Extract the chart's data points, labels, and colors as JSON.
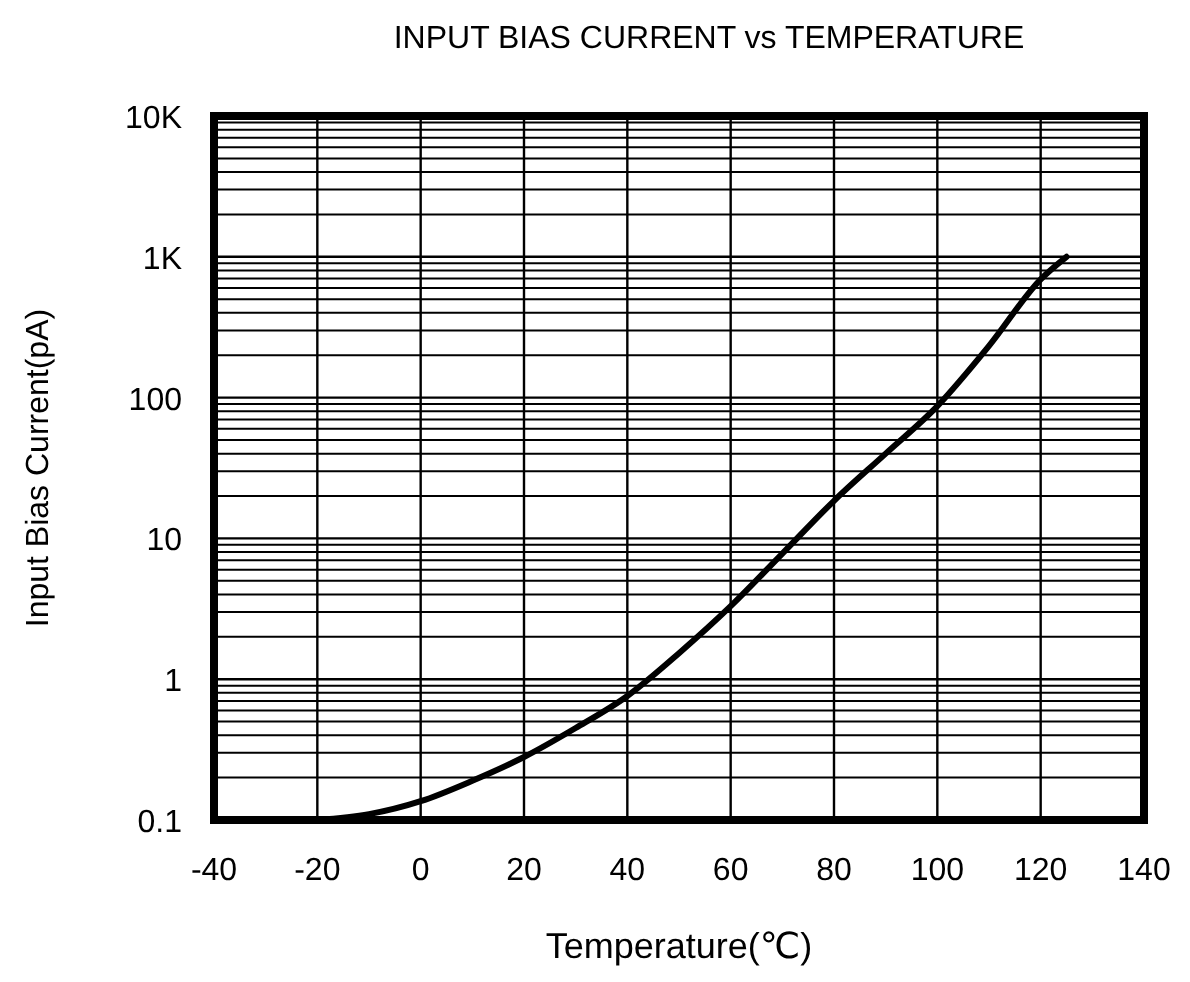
{
  "chart_data": {
    "type": "line",
    "title": "INPUT BIAS CURRENT vs TEMPERATURE",
    "xlabel": "Temperature(℃)",
    "ylabel": "Input Bias Current(pA)",
    "x": [
      -20,
      -10,
      0,
      10,
      20,
      30,
      40,
      50,
      60,
      70,
      80,
      90,
      100,
      110,
      120,
      125
    ],
    "series": [
      {
        "color": "#000000",
        "values": [
          0.1,
          0.11,
          0.136,
          0.19,
          0.28,
          0.45,
          0.76,
          1.53,
          3.3,
          7.8,
          18.5,
          40,
          87,
          233,
          692,
          1000
        ]
      }
    ],
    "xlim": [
      -40,
      140
    ],
    "xticks": [
      -40,
      -20,
      0,
      20,
      40,
      60,
      80,
      100,
      120,
      140
    ],
    "ylim": [
      0.1,
      10000
    ],
    "yticks": [
      0.1,
      1,
      10,
      100,
      {
        "value": 1000,
        "label": "1K"
      },
      {
        "value": 10000,
        "label": "10K"
      }
    ],
    "log": "y",
    "grid": true,
    "marker": "none",
    "line_style": "solid"
  }
}
